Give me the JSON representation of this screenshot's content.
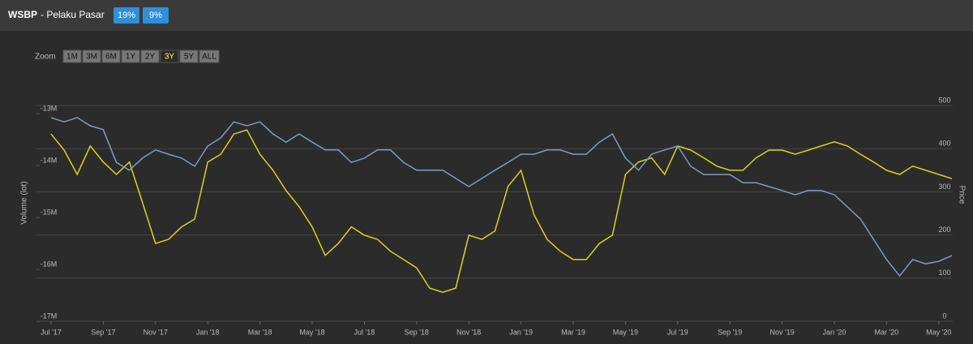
{
  "ui": {
    "title": "WSBP",
    "subtitle": "- Pelaku Pasar",
    "badges": [
      "19%",
      "9%"
    ],
    "zoom_label": "Zoom",
    "zoom_buttons": [
      "1M",
      "3M",
      "6M",
      "1Y",
      "2Y",
      "3Y",
      "5Y",
      "ALL"
    ],
    "zoom_selected": "3Y"
  },
  "chart_data": {
    "type": "line",
    "y_label": "Volume (lot)",
    "y2_label": "Price",
    "categories": [
      "Jul '17",
      null,
      null,
      null,
      "Sep '17",
      null,
      null,
      null,
      "Nov '17",
      null,
      null,
      null,
      "Jan '18",
      null,
      null,
      null,
      "Mar '18",
      null,
      null,
      null,
      "May '18",
      null,
      null,
      null,
      "Jul '18",
      null,
      null,
      null,
      "Sep '18",
      null,
      null,
      null,
      "Nov '18",
      null,
      null,
      null,
      "Jan '19",
      null,
      null,
      null,
      "Mar '19",
      null,
      null,
      null,
      "May '19",
      null,
      null,
      null,
      "Jul '19",
      null,
      null,
      null,
      "Sep '19",
      null,
      null,
      null,
      "Nov '19",
      null,
      null,
      null,
      "Jan '20",
      null,
      null,
      null,
      "Mar '20",
      null,
      null,
      null,
      "May '20",
      null
    ],
    "ylim": [
      -17000000,
      -12840000
    ],
    "yticks": [
      {
        "value": -17000000,
        "label": "-17M"
      },
      {
        "value": -16000000,
        "label": "-16M"
      },
      {
        "value": -15000000,
        "label": "-15M"
      },
      {
        "value": -14000000,
        "label": "-14M"
      },
      {
        "value": -13000000,
        "label": "-13M"
      }
    ],
    "y2lim": [
      0,
      500
    ],
    "y2ticks": [
      0,
      100,
      200,
      300,
      400,
      500
    ],
    "grid": true,
    "series": [
      {
        "color": "#d8d41e",
        "values": [
          -13390000,
          -13700000,
          -14170000,
          -13620000,
          -13930000,
          -14170000,
          -13930000,
          -14710000,
          -15500000,
          -15420000,
          -15180000,
          -15030000,
          -13930000,
          -13780000,
          -13390000,
          -13310000,
          -13780000,
          -14090000,
          -14480000,
          -14790000,
          -15180000,
          -15730000,
          -15500000,
          -15180000,
          -15340000,
          -15420000,
          -15650000,
          -15810000,
          -15970000,
          -16360000,
          -16440000,
          -16360000,
          -15340000,
          -15420000,
          -15260000,
          -14400000,
          -14090000,
          -14950000,
          -15420000,
          -15650000,
          -15810000,
          -15810000,
          -15500000,
          -15340000,
          -14170000,
          -13930000,
          -13850000,
          -14170000,
          -13620000,
          -13700000,
          -13850000,
          -14010000,
          -14090000,
          -14090000,
          -13850000,
          -13700000,
          -13700000,
          -13780000,
          -13700000,
          -13620000,
          -13540000,
          -13620000,
          -13780000,
          -13930000,
          -14090000,
          -14170000,
          -14010000,
          -14090000,
          -14170000,
          -14250000
        ]
      },
      {
        "color": "#7f9bbf",
        "axis": "y2",
        "values": [
          472,
          462,
          472,
          453,
          444,
          368,
          350,
          378,
          397,
          387,
          378,
          359,
          406,
          425,
          462,
          453,
          462,
          434,
          415,
          434,
          415,
          397,
          397,
          368,
          378,
          397,
          397,
          368,
          350,
          350,
          350,
          331,
          312,
          331,
          350,
          368,
          387,
          387,
          397,
          397,
          387,
          387,
          415,
          434,
          378,
          350,
          387,
          397,
          406,
          359,
          340,
          340,
          340,
          321,
          321,
          312,
          303,
          293,
          303,
          303,
          293,
          265,
          237,
          190,
          143,
          105,
          143,
          133,
          139,
          152
        ]
      }
    ]
  }
}
